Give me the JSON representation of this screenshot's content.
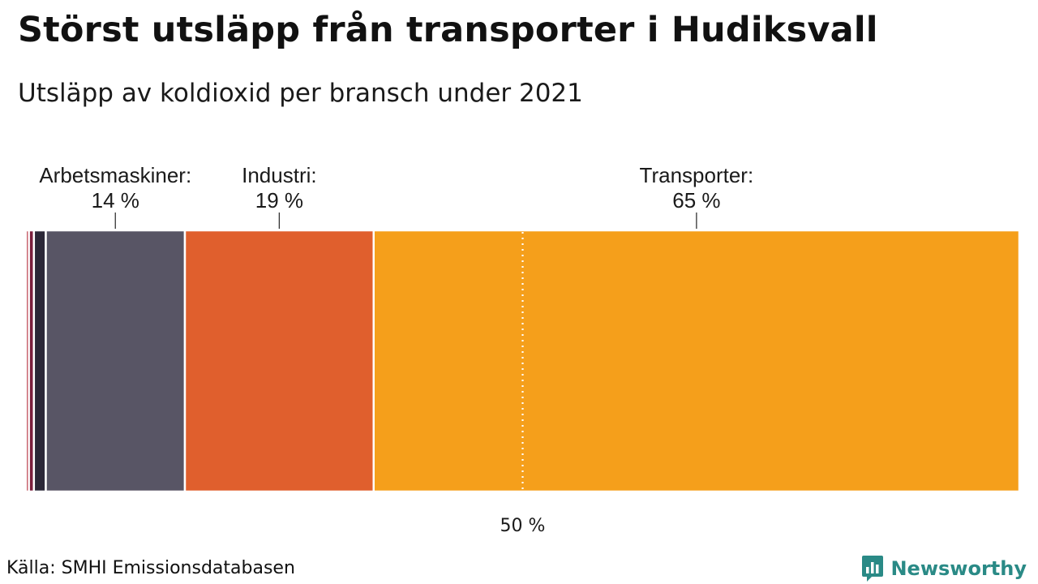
{
  "header": {
    "title": "Störst utsläpp från transporter i Hudiksvall",
    "subtitle": "Utsläpp av koldioxid per bransch under 2021"
  },
  "footer": {
    "source": "Källa: SMHI Emissionsdatabasen",
    "brand": "Newsworthy"
  },
  "colors": {
    "brand": "#2a8a86"
  },
  "chart_data": {
    "type": "bar",
    "orientation": "horizontal-stacked-100",
    "title": "Störst utsläpp från transporter i Hudiksvall",
    "subtitle": "Utsläpp av koldioxid per bransch under 2021",
    "unit": "%",
    "xlim": [
      0,
      100
    ],
    "reference_line": {
      "value": 50,
      "label": "50 %",
      "style": "dotted"
    },
    "segments": [
      {
        "name": "",
        "value": 0.3,
        "color": "#b5313f",
        "label": "",
        "value_label": ""
      },
      {
        "name": "",
        "value": 0.5,
        "color": "#7a1f3d",
        "label": "",
        "value_label": ""
      },
      {
        "name": "",
        "value": 1.2,
        "color": "#2c2838",
        "label": "",
        "value_label": ""
      },
      {
        "name": "Arbetsmaskiner",
        "value": 14,
        "color": "#585565",
        "label": "Arbetsmaskiner:",
        "value_label": "14 %"
      },
      {
        "name": "Industri",
        "value": 19,
        "color": "#e05f2d",
        "label": "Industri:",
        "value_label": "19 %"
      },
      {
        "name": "Transporter",
        "value": 65,
        "color": "#f59f1b",
        "label": "Transporter:",
        "value_label": "65 %"
      }
    ]
  }
}
